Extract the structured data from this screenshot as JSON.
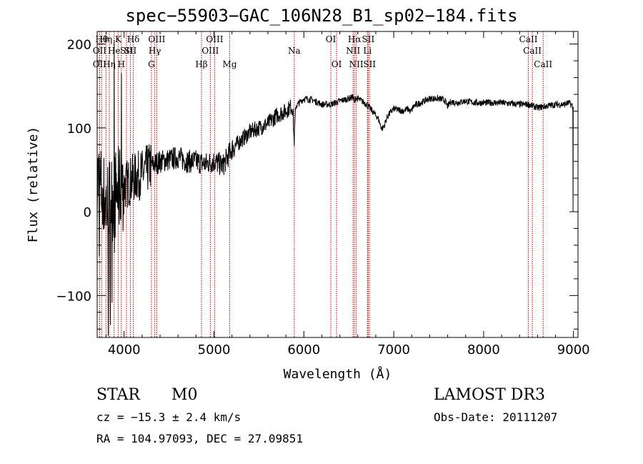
{
  "chart_data": {
    "type": "line",
    "title": "spec−55903−GAC_106N28_B1_sp02−184.fits",
    "xlabel": "Wavelength (Å)",
    "ylabel": "Flux (relative)",
    "xlim": [
      3700,
      9050
    ],
    "ylim": [
      -150,
      215
    ],
    "xticks": [
      {
        "v": 4000,
        "label": "4000"
      },
      {
        "v": 5000,
        "label": "5000"
      },
      {
        "v": 6000,
        "label": "6000"
      },
      {
        "v": 7000,
        "label": "7000"
      },
      {
        "v": 8000,
        "label": "8000"
      },
      {
        "v": 9000,
        "label": "9000"
      }
    ],
    "yticks": [
      {
        "v": -100,
        "label": "−100"
      },
      {
        "v": 0,
        "label": "0"
      },
      {
        "v": 100,
        "label": "100"
      },
      {
        "v": 200,
        "label": "200"
      }
    ],
    "spectrum_anchors": [
      [
        3700,
        40
      ],
      [
        3800,
        10
      ],
      [
        3900,
        20
      ],
      [
        4000,
        30
      ],
      [
        4100,
        40
      ],
      [
        4200,
        45
      ],
      [
        4300,
        55
      ],
      [
        4400,
        60
      ],
      [
        4500,
        62
      ],
      [
        4600,
        65
      ],
      [
        4700,
        60
      ],
      [
        4800,
        60
      ],
      [
        4900,
        57
      ],
      [
        5000,
        60
      ],
      [
        5100,
        55
      ],
      [
        5200,
        75
      ],
      [
        5300,
        85
      ],
      [
        5400,
        95
      ],
      [
        5500,
        100
      ],
      [
        5600,
        105
      ],
      [
        5700,
        115
      ],
      [
        5800,
        120
      ],
      [
        5850,
        125
      ],
      [
        5900,
        125
      ],
      [
        6000,
        135
      ],
      [
        6100,
        133
      ],
      [
        6200,
        128
      ],
      [
        6300,
        128
      ],
      [
        6400,
        132
      ],
      [
        6500,
        135
      ],
      [
        6550,
        137
      ],
      [
        6600,
        135
      ],
      [
        6700,
        128
      ],
      [
        6800,
        115
      ],
      [
        6900,
        110
      ],
      [
        7000,
        123
      ],
      [
        7100,
        120
      ],
      [
        7200,
        125
      ],
      [
        7300,
        130
      ],
      [
        7400,
        135
      ],
      [
        7500,
        135
      ],
      [
        7600,
        132
      ],
      [
        7700,
        130
      ],
      [
        7800,
        132
      ],
      [
        7900,
        130
      ],
      [
        8000,
        130
      ],
      [
        8200,
        130
      ],
      [
        8400,
        128
      ],
      [
        8500,
        128
      ],
      [
        8600,
        124
      ],
      [
        8700,
        126
      ],
      [
        8800,
        128
      ],
      [
        8900,
        128
      ],
      [
        8950,
        130
      ],
      [
        9000,
        125
      ]
    ],
    "absorption_features": [
      {
        "wl": 5892,
        "depth": 40,
        "width": 7
      },
      {
        "wl": 6563,
        "depth": 8,
        "width": 5
      },
      {
        "wl": 6870,
        "depth": 12,
        "width": 25
      },
      {
        "wl": 7190,
        "depth": 5,
        "width": 15
      },
      {
        "wl": 7600,
        "depth": 6,
        "width": 15
      }
    ],
    "emission_spikes": [
      {
        "wl": 3889,
        "flux": 205
      },
      {
        "wl": 3970,
        "flux": 165
      }
    ],
    "noise_regions": [
      {
        "from": 3700,
        "to": 4000,
        "amp": 55
      },
      {
        "from": 4000,
        "to": 4300,
        "amp": 30
      },
      {
        "from": 4300,
        "to": 5250,
        "amp": 14
      },
      {
        "from": 5250,
        "to": 5900,
        "amp": 10
      },
      {
        "from": 5900,
        "to": 9050,
        "amp": 4
      }
    ],
    "lines": [
      {
        "wl": 3750,
        "label": "Hθ",
        "row": 0
      },
      {
        "wl": 3727,
        "label": "OII",
        "row": 1
      },
      {
        "wl": 3727,
        "label": "OII",
        "row": 2
      },
      {
        "wl": 3798,
        "label": "Hη",
        "row": 0
      },
      {
        "wl": 3835,
        "label": "Hη",
        "row": 2
      },
      {
        "wl": 3889,
        "label": "He",
        "row": 1
      },
      {
        "wl": 3934,
        "label": "K",
        "row": 0
      },
      {
        "wl": 3969,
        "label": "H",
        "row": 2
      },
      {
        "wl": 4026,
        "label": "SII",
        "row": 1
      },
      {
        "wl": 4102,
        "label": "Hδ",
        "row": 0
      },
      {
        "wl": 4069,
        "label": "SII",
        "row": 1
      },
      {
        "wl": 4341,
        "label": "Hγ",
        "row": 1
      },
      {
        "wl": 4363,
        "label": "OIII",
        "row": 0
      },
      {
        "wl": 4304,
        "label": "G",
        "row": 2
      },
      {
        "wl": 4861,
        "label": "Hβ",
        "row": 2
      },
      {
        "wl": 4959,
        "label": "OIII",
        "row": 1
      },
      {
        "wl": 5007,
        "label": "OIII",
        "row": 0
      },
      {
        "wl": 5175,
        "label": "Mg",
        "row": 2
      },
      {
        "wl": 5893,
        "label": "Na",
        "row": 1
      },
      {
        "wl": 6300,
        "label": "OI",
        "row": 0
      },
      {
        "wl": 6364,
        "label": "OI",
        "row": 2
      },
      {
        "wl": 6548,
        "label": "NII",
        "row": 1
      },
      {
        "wl": 6563,
        "label": "Hα",
        "row": 0
      },
      {
        "wl": 6583,
        "label": "NII",
        "row": 2
      },
      {
        "wl": 6707,
        "label": "Li",
        "row": 1
      },
      {
        "wl": 6716,
        "label": "SII",
        "row": 0
      },
      {
        "wl": 6731,
        "label": "SII",
        "row": 2
      },
      {
        "wl": 8498,
        "label": "CaII",
        "row": 0
      },
      {
        "wl": 8542,
        "label": "CaII",
        "row": 1
      },
      {
        "wl": 8662,
        "label": "CaII",
        "row": 2
      }
    ],
    "line_color": "#000000",
    "marker_color": "#c00000"
  },
  "info": {
    "class": "STAR",
    "subclass": "M0",
    "cz": "cz = −15.3 ± 2.4 km/s",
    "radec": "RA = 104.97093, DEC =  27.09851",
    "survey": "LAMOST DR3",
    "obsdate": "Obs-Date: 20111207"
  }
}
